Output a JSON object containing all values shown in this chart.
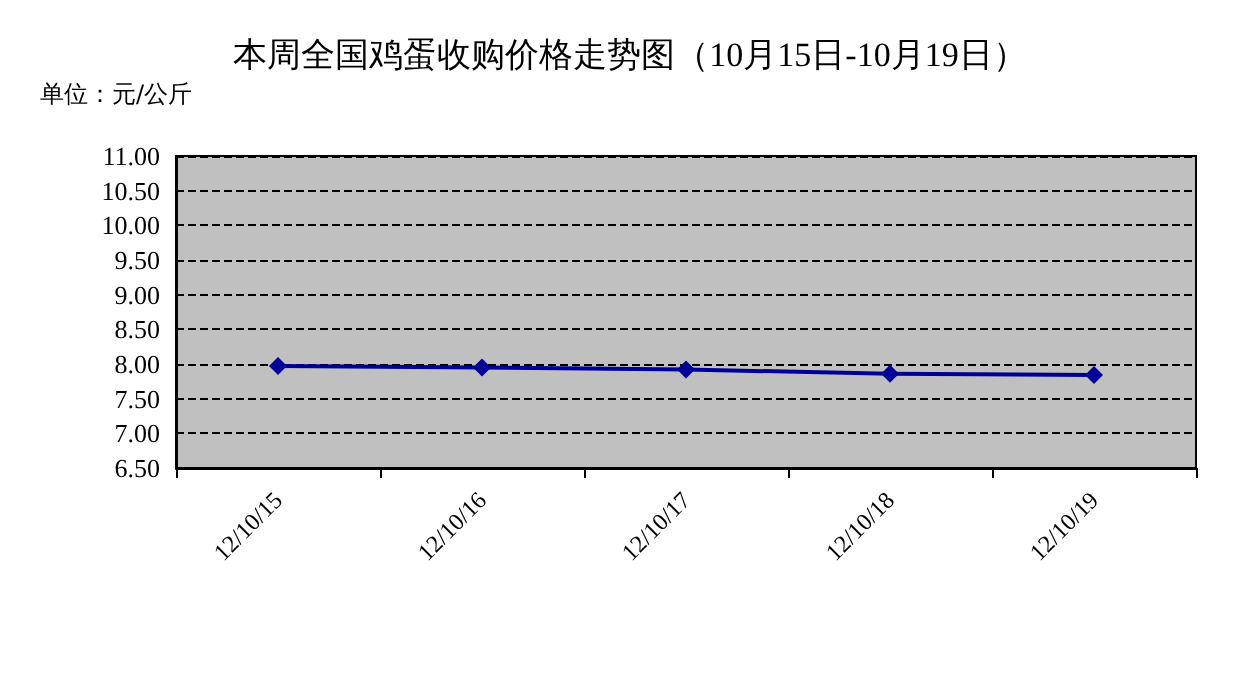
{
  "chart_data": {
    "type": "line",
    "title": "本周全国鸡蛋收购价格走势图（10月15日-10月19日）",
    "ylabel": "单位：元/公斤",
    "categories": [
      "12/10/15",
      "12/10/16",
      "12/10/17",
      "12/10/18",
      "12/10/19"
    ],
    "series": [
      {
        "color": "#000099",
        "values": [
          7.97,
          7.95,
          7.92,
          7.86,
          7.84
        ]
      }
    ],
    "ylim": [
      6.5,
      11
    ],
    "yticks": [
      {
        "value": 6.5,
        "label": "6.50"
      },
      {
        "value": 7,
        "label": "7.00"
      },
      {
        "value": 7.5,
        "label": "7.50"
      },
      {
        "value": 8,
        "label": "8.00"
      },
      {
        "value": 8.5,
        "label": "8.50"
      },
      {
        "value": 9,
        "label": "9.00"
      },
      {
        "value": 9.5,
        "label": "9.50"
      },
      {
        "value": 10,
        "label": "10.00"
      },
      {
        "value": 10.5,
        "label": "10.50"
      },
      {
        "value": 11,
        "label": "11.00"
      }
    ],
    "grid": "y",
    "marker": "diamond",
    "line_style": "solid"
  }
}
